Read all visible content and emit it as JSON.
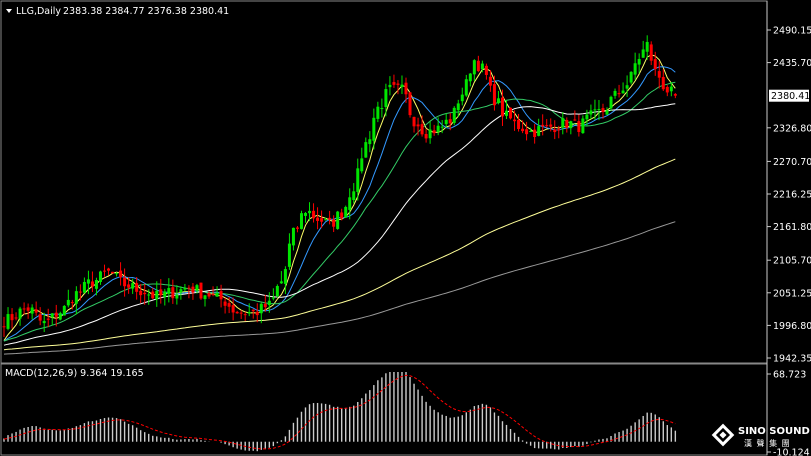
{
  "header": {
    "symbol_period": "LLG,Daily",
    "ohlc": "2383.38 2384.77 2376.38 2380.41"
  },
  "macd_header": "MACD(12,26,9) 9.364 19.165",
  "colors": {
    "bull": "#00e600",
    "bear": "#ff0000",
    "ma5": "#ffff66",
    "ma10": "#3399ff",
    "ma20": "#33cc66",
    "ma40": "#ffffff",
    "ma120": "#ffff99",
    "ma200": "#999999",
    "macd_hist": "#cccccc",
    "macd_signal": "#ff0000",
    "axis_line": "#cccccc",
    "price_badge_bg": "#ffffff"
  },
  "watermark": {
    "brand": "SINO SOUND",
    "cn": "漢 聲 集 團"
  },
  "chart_data": [
    {
      "type": "candlestick",
      "title": "LLG,Daily",
      "current_price": "2380.41",
      "ylim": [
        1942.35,
        2505
      ],
      "y_ticks": [
        "2490.15",
        "2435.70",
        "2380.41",
        "2326.80",
        "2270.70",
        "2216.25",
        "2161.80",
        "2105.70",
        "2051.25",
        "1996.80",
        "1942.35"
      ],
      "grid": false,
      "anchors": [
        [
          0,
          2005
        ],
        [
          6,
          2025
        ],
        [
          10,
          2000
        ],
        [
          14,
          2020
        ],
        [
          18,
          2050
        ],
        [
          22,
          2070
        ],
        [
          26,
          2085
        ],
        [
          30,
          2065
        ],
        [
          34,
          2055
        ],
        [
          38,
          2045
        ],
        [
          42,
          2052
        ],
        [
          46,
          2060
        ],
        [
          50,
          2050
        ],
        [
          54,
          2040
        ],
        [
          58,
          2020
        ],
        [
          62,
          2018
        ],
        [
          66,
          2030
        ],
        [
          69,
          2070
        ],
        [
          72,
          2150
        ],
        [
          75,
          2190
        ],
        [
          78,
          2175
        ],
        [
          81,
          2165
        ],
        [
          84,
          2185
        ],
        [
          87,
          2230
        ],
        [
          90,
          2300
        ],
        [
          93,
          2360
        ],
        [
          96,
          2390
        ],
        [
          99,
          2390
        ],
        [
          102,
          2340
        ],
        [
          105,
          2320
        ],
        [
          108,
          2325
        ],
        [
          111,
          2340
        ],
        [
          114,
          2385
        ],
        [
          117,
          2440
        ],
        [
          119,
          2425
        ],
        [
          122,
          2375
        ],
        [
          125,
          2345
        ],
        [
          128,
          2330
        ],
        [
          131,
          2320
        ],
        [
          134,
          2325
        ],
        [
          137,
          2330
        ],
        [
          140,
          2335
        ],
        [
          143,
          2330
        ],
        [
          146,
          2345
        ],
        [
          149,
          2355
        ],
        [
          152,
          2380
        ],
        [
          155,
          2400
        ],
        [
          158,
          2445
        ],
        [
          160,
          2465
        ],
        [
          162,
          2420
        ],
        [
          165,
          2390
        ],
        [
          167,
          2380
        ]
      ],
      "last_candle": {
        "open": 2383.38,
        "high": 2384.77,
        "low": 2376.38,
        "close": 2380.41
      },
      "moving_averages": [
        {
          "color_key": "ma5",
          "period": 5
        },
        {
          "color_key": "ma10",
          "period": 10
        },
        {
          "color_key": "ma20",
          "period": 20
        },
        {
          "color_key": "ma40",
          "period": 40
        },
        {
          "color_key": "ma120",
          "period": 120
        },
        {
          "color_key": "ma200",
          "period": 200
        }
      ]
    },
    {
      "type": "bar",
      "title": "MACD(12,26,9) 9.364 19.165",
      "values_label_main": "9.364",
      "values_label_signal": "19.165",
      "ylim": [
        -10.124,
        68.723
      ],
      "y_ticks": [
        "68.723",
        "-10.124"
      ]
    }
  ]
}
